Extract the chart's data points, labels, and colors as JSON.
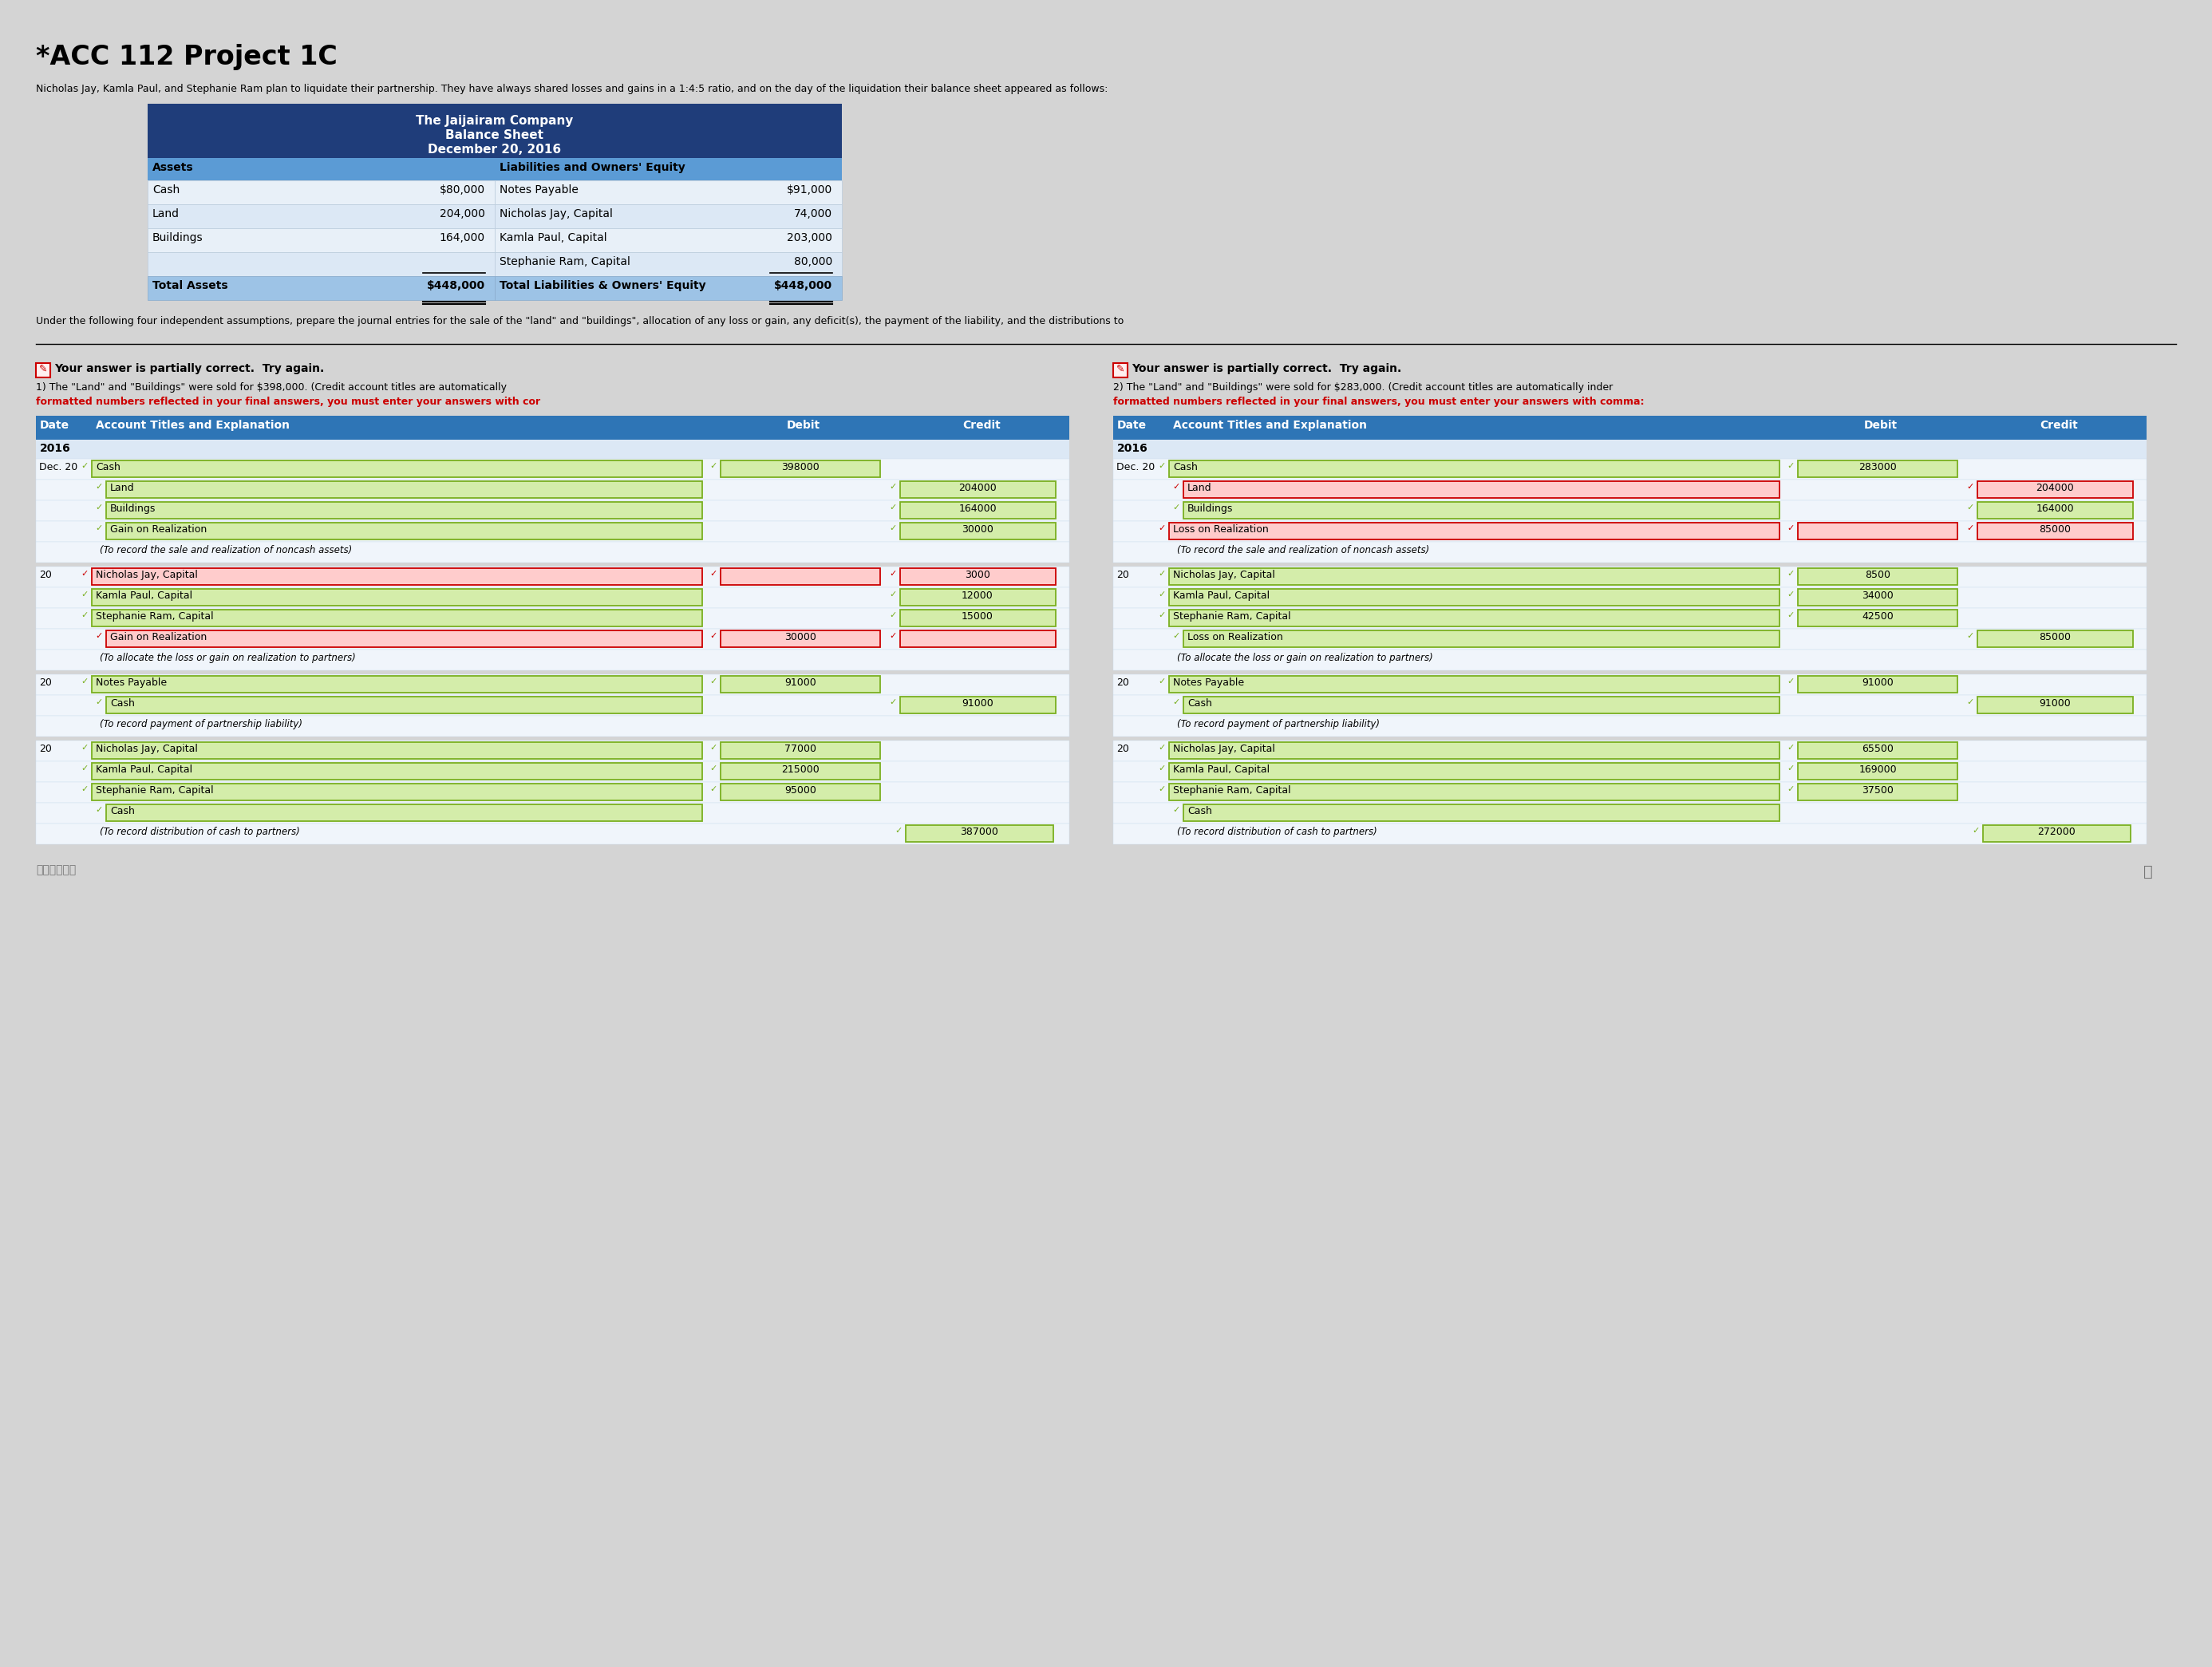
{
  "title": "*ACC 112 Project 1C",
  "subtitle": "Nicholas Jay, Kamla Paul, and Stephanie Ram plan to liquidate their partnership. They have always shared losses and gains in a 1:4:5 ratio, and on the day of the liquidation their balance sheet appeared as follows:",
  "bs_title1": "The Jaijairam Company",
  "bs_title2": "Balance Sheet",
  "bs_title3": "December 20, 2016",
  "bs_header_bg": "#1f3d7a",
  "bs_assets_bg": "#5b9bd5",
  "bs_row_bg": "#dce8f5",
  "bs_total_bg": "#9dc3e6",
  "bs_assets": [
    [
      "Cash",
      "$80,000"
    ],
    [
      "Land",
      "204,000"
    ],
    [
      "Buildings",
      "164,000"
    ]
  ],
  "bs_liabilities": [
    [
      "Notes Payable",
      "$91,000"
    ],
    [
      "Nicholas Jay, Capital",
      "74,000"
    ],
    [
      "Kamla Paul, Capital",
      "203,000"
    ],
    [
      "Stephanie Ram, Capital",
      "80,000"
    ]
  ],
  "bs_total_assets": "$448,000",
  "bs_total_liab": "$448,000",
  "under_text": "Under the following four independent assumptions, prepare the journal entries for the sale of the \"land\" and \"buildings\", allocation of any loss or gain, any deficit(s), the payment of the liability, and the distributions to",
  "partial_correct_text": "Your answer is partially correct.  Try again.",
  "scenario1_line1": "1) The \"Land\" and \"Buildings\" were sold for $398,000. (Credit account titles are automatically",
  "scenario1_line2": "formatted numbers reflected in your final answers, you must enter your answers with cor",
  "scenario2_line1": "2) The \"Land\" and \"Buildings\" were sold for $283,000. (Credit account titles are automatically inder",
  "scenario2_line2": "formatted numbers reflected in your final answers, you must enter your answers with comma:",
  "table_header_bg": "#2e75b6",
  "table_header_text": "#ffffff",
  "journal1": {
    "year": "2016",
    "entries": [
      {
        "date": "Dec. 20",
        "accounts": [
          {
            "name": "Cash",
            "debit": "398000",
            "credit": "",
            "indent": 0,
            "debit_style": "green",
            "credit_style": "none",
            "name_style": "green"
          },
          {
            "name": "Land",
            "debit": "",
            "credit": "204000",
            "indent": 1,
            "debit_style": "none",
            "credit_style": "green",
            "name_style": "green"
          },
          {
            "name": "Buildings",
            "debit": "",
            "credit": "164000",
            "indent": 1,
            "debit_style": "none",
            "credit_style": "green",
            "name_style": "green"
          },
          {
            "name": "Gain on Realization",
            "debit": "",
            "credit": "30000",
            "indent": 1,
            "debit_style": "none",
            "credit_style": "green",
            "name_style": "green"
          },
          {
            "name": "(To record the sale and realization of noncash assets)",
            "debit": "",
            "credit": "",
            "indent": 0,
            "debit_style": "none",
            "credit_style": "none",
            "name_style": "italic"
          }
        ]
      },
      {
        "date": "20",
        "accounts": [
          {
            "name": "Nicholas Jay, Capital",
            "debit": "",
            "credit": "3000",
            "indent": 0,
            "debit_style": "red_empty",
            "credit_style": "red_empty",
            "name_style": "red"
          },
          {
            "name": "Kamla Paul, Capital",
            "debit": "",
            "credit": "12000",
            "indent": 0,
            "debit_style": "none",
            "credit_style": "green",
            "name_style": "green"
          },
          {
            "name": "Stephanie Ram, Capital",
            "debit": "",
            "credit": "15000",
            "indent": 0,
            "debit_style": "none",
            "credit_style": "green",
            "name_style": "green"
          },
          {
            "name": "Gain on Realization",
            "debit": "30000",
            "credit": "",
            "indent": 1,
            "debit_style": "red_empty",
            "credit_style": "red_empty",
            "name_style": "red"
          },
          {
            "name": "(To allocate the loss or gain on realization to partners)",
            "debit": "",
            "credit": "",
            "indent": 0,
            "debit_style": "none",
            "credit_style": "none",
            "name_style": "italic"
          }
        ]
      },
      {
        "date": "20",
        "accounts": [
          {
            "name": "Notes Payable",
            "debit": "91000",
            "credit": "",
            "indent": 0,
            "debit_style": "green",
            "credit_style": "none",
            "name_style": "green"
          },
          {
            "name": "Cash",
            "debit": "",
            "credit": "91000",
            "indent": 1,
            "debit_style": "none",
            "credit_style": "green",
            "name_style": "green"
          },
          {
            "name": "(To record payment of partnership liability)",
            "debit": "",
            "credit": "",
            "indent": 0,
            "debit_style": "none",
            "credit_style": "none",
            "name_style": "italic"
          }
        ]
      },
      {
        "date": "20",
        "accounts": [
          {
            "name": "Nicholas Jay, Capital",
            "debit": "77000",
            "credit": "",
            "indent": 0,
            "debit_style": "green",
            "credit_style": "none",
            "name_style": "green"
          },
          {
            "name": "Kamla Paul, Capital",
            "debit": "215000",
            "credit": "",
            "indent": 0,
            "debit_style": "green",
            "credit_style": "none",
            "name_style": "green"
          },
          {
            "name": "Stephanie Ram, Capital",
            "debit": "95000",
            "credit": "",
            "indent": 0,
            "debit_style": "green",
            "credit_style": "none",
            "name_style": "green"
          },
          {
            "name": "Cash",
            "debit": "",
            "credit": "",
            "indent": 1,
            "debit_style": "none",
            "credit_style": "none",
            "name_style": "green"
          },
          {
            "name": "(To record distribution of cash to partners)",
            "debit": "",
            "credit": "387000",
            "indent": 0,
            "debit_style": "none",
            "credit_style": "green",
            "name_style": "italic"
          }
        ]
      }
    ]
  },
  "journal2": {
    "year": "2016",
    "entries": [
      {
        "date": "Dec. 20",
        "accounts": [
          {
            "name": "Cash",
            "debit": "283000",
            "credit": "",
            "indent": 0,
            "debit_style": "green",
            "credit_style": "none",
            "name_style": "green"
          },
          {
            "name": "Land",
            "debit": "",
            "credit": "204000",
            "indent": 1,
            "debit_style": "none",
            "credit_style": "red_empty",
            "name_style": "red"
          },
          {
            "name": "Buildings",
            "debit": "",
            "credit": "164000",
            "indent": 1,
            "debit_style": "none",
            "credit_style": "green",
            "name_style": "green"
          },
          {
            "name": "Loss on Realization",
            "debit": "",
            "credit": "85000",
            "indent": 0,
            "debit_style": "red_empty",
            "credit_style": "red_empty",
            "name_style": "red"
          },
          {
            "name": "(To record the sale and realization of noncash assets)",
            "debit": "",
            "credit": "",
            "indent": 0,
            "debit_style": "none",
            "credit_style": "none",
            "name_style": "italic"
          }
        ]
      },
      {
        "date": "20",
        "accounts": [
          {
            "name": "Nicholas Jay, Capital",
            "debit": "8500",
            "credit": "",
            "indent": 0,
            "debit_style": "green",
            "credit_style": "none",
            "name_style": "green"
          },
          {
            "name": "Kamla Paul, Capital",
            "debit": "34000",
            "credit": "",
            "indent": 0,
            "debit_style": "green",
            "credit_style": "none",
            "name_style": "green"
          },
          {
            "name": "Stephanie Ram, Capital",
            "debit": "42500",
            "credit": "",
            "indent": 0,
            "debit_style": "green",
            "credit_style": "none",
            "name_style": "green"
          },
          {
            "name": "Loss on Realization",
            "debit": "",
            "credit": "85000",
            "indent": 1,
            "debit_style": "none",
            "credit_style": "green",
            "name_style": "green"
          },
          {
            "name": "(To allocate the loss or gain on realization to partners)",
            "debit": "",
            "credit": "",
            "indent": 0,
            "debit_style": "none",
            "credit_style": "none",
            "name_style": "italic"
          }
        ]
      },
      {
        "date": "20",
        "accounts": [
          {
            "name": "Notes Payable",
            "debit": "91000",
            "credit": "",
            "indent": 0,
            "debit_style": "green",
            "credit_style": "none",
            "name_style": "green"
          },
          {
            "name": "Cash",
            "debit": "",
            "credit": "91000",
            "indent": 1,
            "debit_style": "none",
            "credit_style": "green",
            "name_style": "green"
          },
          {
            "name": "(To record payment of partnership liability)",
            "debit": "",
            "credit": "",
            "indent": 0,
            "debit_style": "none",
            "credit_style": "none",
            "name_style": "italic"
          }
        ]
      },
      {
        "date": "20",
        "accounts": [
          {
            "name": "Nicholas Jay, Capital",
            "debit": "65500",
            "credit": "",
            "indent": 0,
            "debit_style": "green",
            "credit_style": "none",
            "name_style": "green"
          },
          {
            "name": "Kamla Paul, Capital",
            "debit": "169000",
            "credit": "",
            "indent": 0,
            "debit_style": "green",
            "credit_style": "none",
            "name_style": "green"
          },
          {
            "name": "Stephanie Ram, Capital",
            "debit": "37500",
            "credit": "",
            "indent": 0,
            "debit_style": "green",
            "credit_style": "none",
            "name_style": "green"
          },
          {
            "name": "Cash",
            "debit": "",
            "credit": "",
            "indent": 1,
            "debit_style": "none",
            "credit_style": "none",
            "name_style": "green"
          },
          {
            "name": "(To record distribution of cash to partners)",
            "debit": "",
            "credit": "272000",
            "indent": 0,
            "debit_style": "none",
            "credit_style": "green",
            "name_style": "italic"
          }
        ]
      }
    ]
  },
  "bg_color": "#d4d4d4",
  "green_box_color": "#d4edaa",
  "green_box_border": "#7ab020",
  "red_box_color": "#ffcccc",
  "red_box_border": "#cc0000",
  "white_box_color": "#ffffff",
  "white_box_border": "#888888"
}
